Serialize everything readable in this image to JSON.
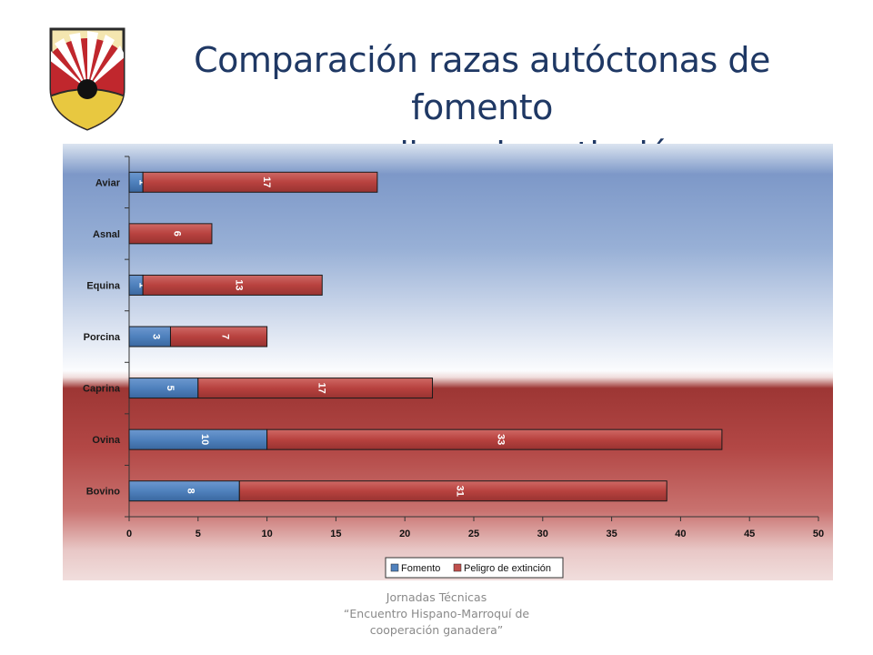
{
  "slide": {
    "title_line1": "Comparación razas autóctonas de fomento",
    "title_line2": "y en peligro de extinción",
    "footer_line1": "Jornadas Técnicas",
    "footer_line2": "“Encuentro Hispano-Marroquí de",
    "footer_line3": "cooperación ganadera”"
  },
  "colors": {
    "title": "#1f3864",
    "fomento": "#4f81bd",
    "peligro": "#c0504d",
    "background_top": "#6f8fc0",
    "background_bottom": "#b84a48"
  },
  "icons": {
    "logo": "university-logo-icon"
  },
  "chart_data": {
    "type": "bar",
    "orientation": "horizontal",
    "stacked": true,
    "categories": [
      "Aviar",
      "Asnal",
      "Equina",
      "Porcina",
      "Caprina",
      "Ovina",
      "Bovino"
    ],
    "series": [
      {
        "name": "Fomento",
        "values": [
          1,
          0,
          1,
          3,
          5,
          10,
          8
        ],
        "color": "#4f81bd"
      },
      {
        "name": "Peligro de extinción",
        "values": [
          17,
          6,
          13,
          7,
          17,
          33,
          31
        ],
        "color": "#c0504d"
      }
    ],
    "xlim": [
      0,
      50
    ],
    "xticks": [
      0,
      5,
      10,
      15,
      20,
      25,
      30,
      35,
      40,
      45,
      50
    ],
    "data_labels": true,
    "legend": "bottom",
    "grid": false
  }
}
